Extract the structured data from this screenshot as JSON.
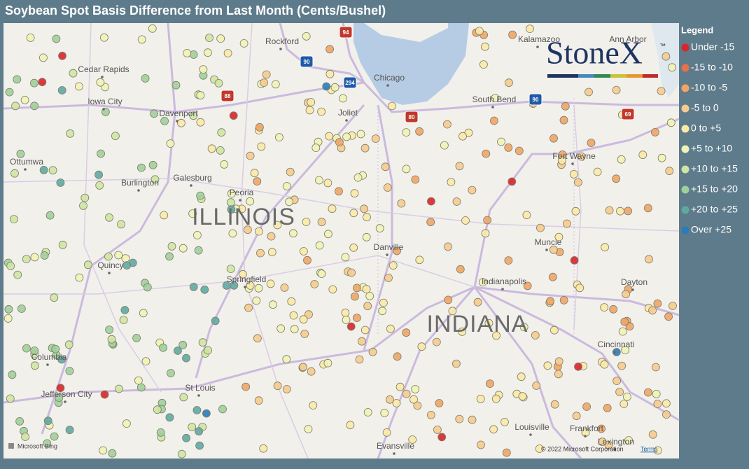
{
  "header": {
    "title": "Soybean Spot Basis Difference from Last Month (Cents/Bushel)"
  },
  "legend": {
    "title": "Legend",
    "items": [
      {
        "label": "Under -15",
        "color": "#d7262b"
      },
      {
        "label": "-15 to -10",
        "color": "#e8714a"
      },
      {
        "label": "-10 to -5",
        "color": "#f0a566"
      },
      {
        "label": "-5 to 0",
        "color": "#f6cb8e"
      },
      {
        "label": "0 to +5",
        "color": "#fbe9a6"
      },
      {
        "label": "+5 to +10",
        "color": "#f1f3b6"
      },
      {
        "label": "+10 to +15",
        "color": "#cfe6a3"
      },
      {
        "label": "+15 to +20",
        "color": "#a0d09b"
      },
      {
        "label": "+20 to +25",
        "color": "#5fa9a3"
      },
      {
        "label": "Over +25",
        "color": "#2b7bb9"
      }
    ]
  },
  "map": {
    "cities": [
      "Rockford",
      "Chicago",
      "Kalamazoo",
      "Ann Arbor",
      "Cedar Rapids",
      "Iowa City",
      "Davenport",
      "Joliet",
      "South Bend",
      "Fort Wayne",
      "Ottumwa",
      "Burlington",
      "Galesburg",
      "Peoria",
      "Quincy",
      "Springfield",
      "Danville",
      "Muncie",
      "Indianapolis",
      "Dayton",
      "Columbia",
      "Cincinnati",
      "St Louis",
      "Jefferson City",
      "Evansville",
      "Louisville",
      "Frankfort",
      "Lexington"
    ],
    "states": [
      "ILLINOIS",
      "INDIANA"
    ],
    "shields": [
      "94",
      "90",
      "88",
      "294",
      "80",
      "90",
      "69"
    ]
  },
  "logo": {
    "name": "StoneX",
    "mark": "™"
  },
  "attribution": {
    "provider": "Microsoft Bing",
    "copyright": "© 2022 Microsoft Corporation",
    "terms": "Terms"
  }
}
